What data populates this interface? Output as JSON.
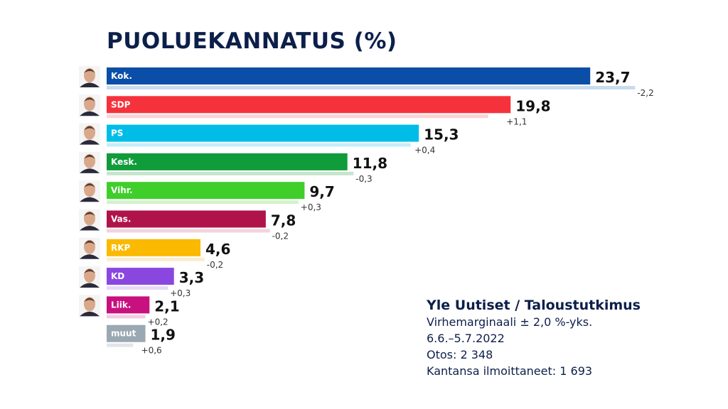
{
  "chart_data": {
    "type": "bar",
    "orientation": "horizontal",
    "title": "PUOLUEKANNATUS (%)",
    "categories": [
      "Kok.",
      "SDP",
      "PS",
      "Kesk.",
      "Vihr.",
      "Vas.",
      "RKP",
      "KD",
      "Liik.",
      "muut"
    ],
    "values": [
      23.7,
      19.8,
      15.3,
      11.8,
      9.7,
      7.8,
      4.6,
      3.3,
      2.1,
      1.9
    ],
    "value_labels": [
      "23,7",
      "19,8",
      "15,3",
      "11,8",
      "9,7",
      "7,8",
      "4,6",
      "3,3",
      "2,1",
      "1,9"
    ],
    "changes": [
      -2.2,
      1.1,
      0.4,
      -0.3,
      0.3,
      -0.2,
      -0.2,
      0.3,
      0.2,
      0.6
    ],
    "change_labels": [
      "-2,2",
      "+1,1",
      "+0,4",
      "-0,3",
      "+0,3",
      "-0,2",
      "-0,2",
      "+0,3",
      "+0,2",
      "+0,6"
    ],
    "colors": [
      "#0a4ea8",
      "#f5323c",
      "#00bde8",
      "#109c3a",
      "#3fce2a",
      "#b0134a",
      "#fbb900",
      "#8a47e0",
      "#c8107e",
      "#9aa8b2"
    ],
    "previous_bar_colors": [
      "#c8dcee",
      "#fcd2d4",
      "#c4eef9",
      "#c6e6cc",
      "#d2f2cc",
      "#f2d4dc",
      "#fdeccc",
      "#e6d8f8",
      "#f2cce2",
      "#e2e6ea"
    ],
    "has_photo": [
      true,
      true,
      true,
      true,
      true,
      true,
      true,
      true,
      true,
      false
    ],
    "grid": false,
    "legend": "none"
  },
  "source": {
    "heading": "Yle Uutiset / Taloustutkimus",
    "lines": [
      "Virhemarginaali ± 2,0 %-yks.",
      "6.6.–5.7.2022",
      "Otos: 2 348",
      "Kantansa ilmoittaneet: 1 693"
    ]
  }
}
